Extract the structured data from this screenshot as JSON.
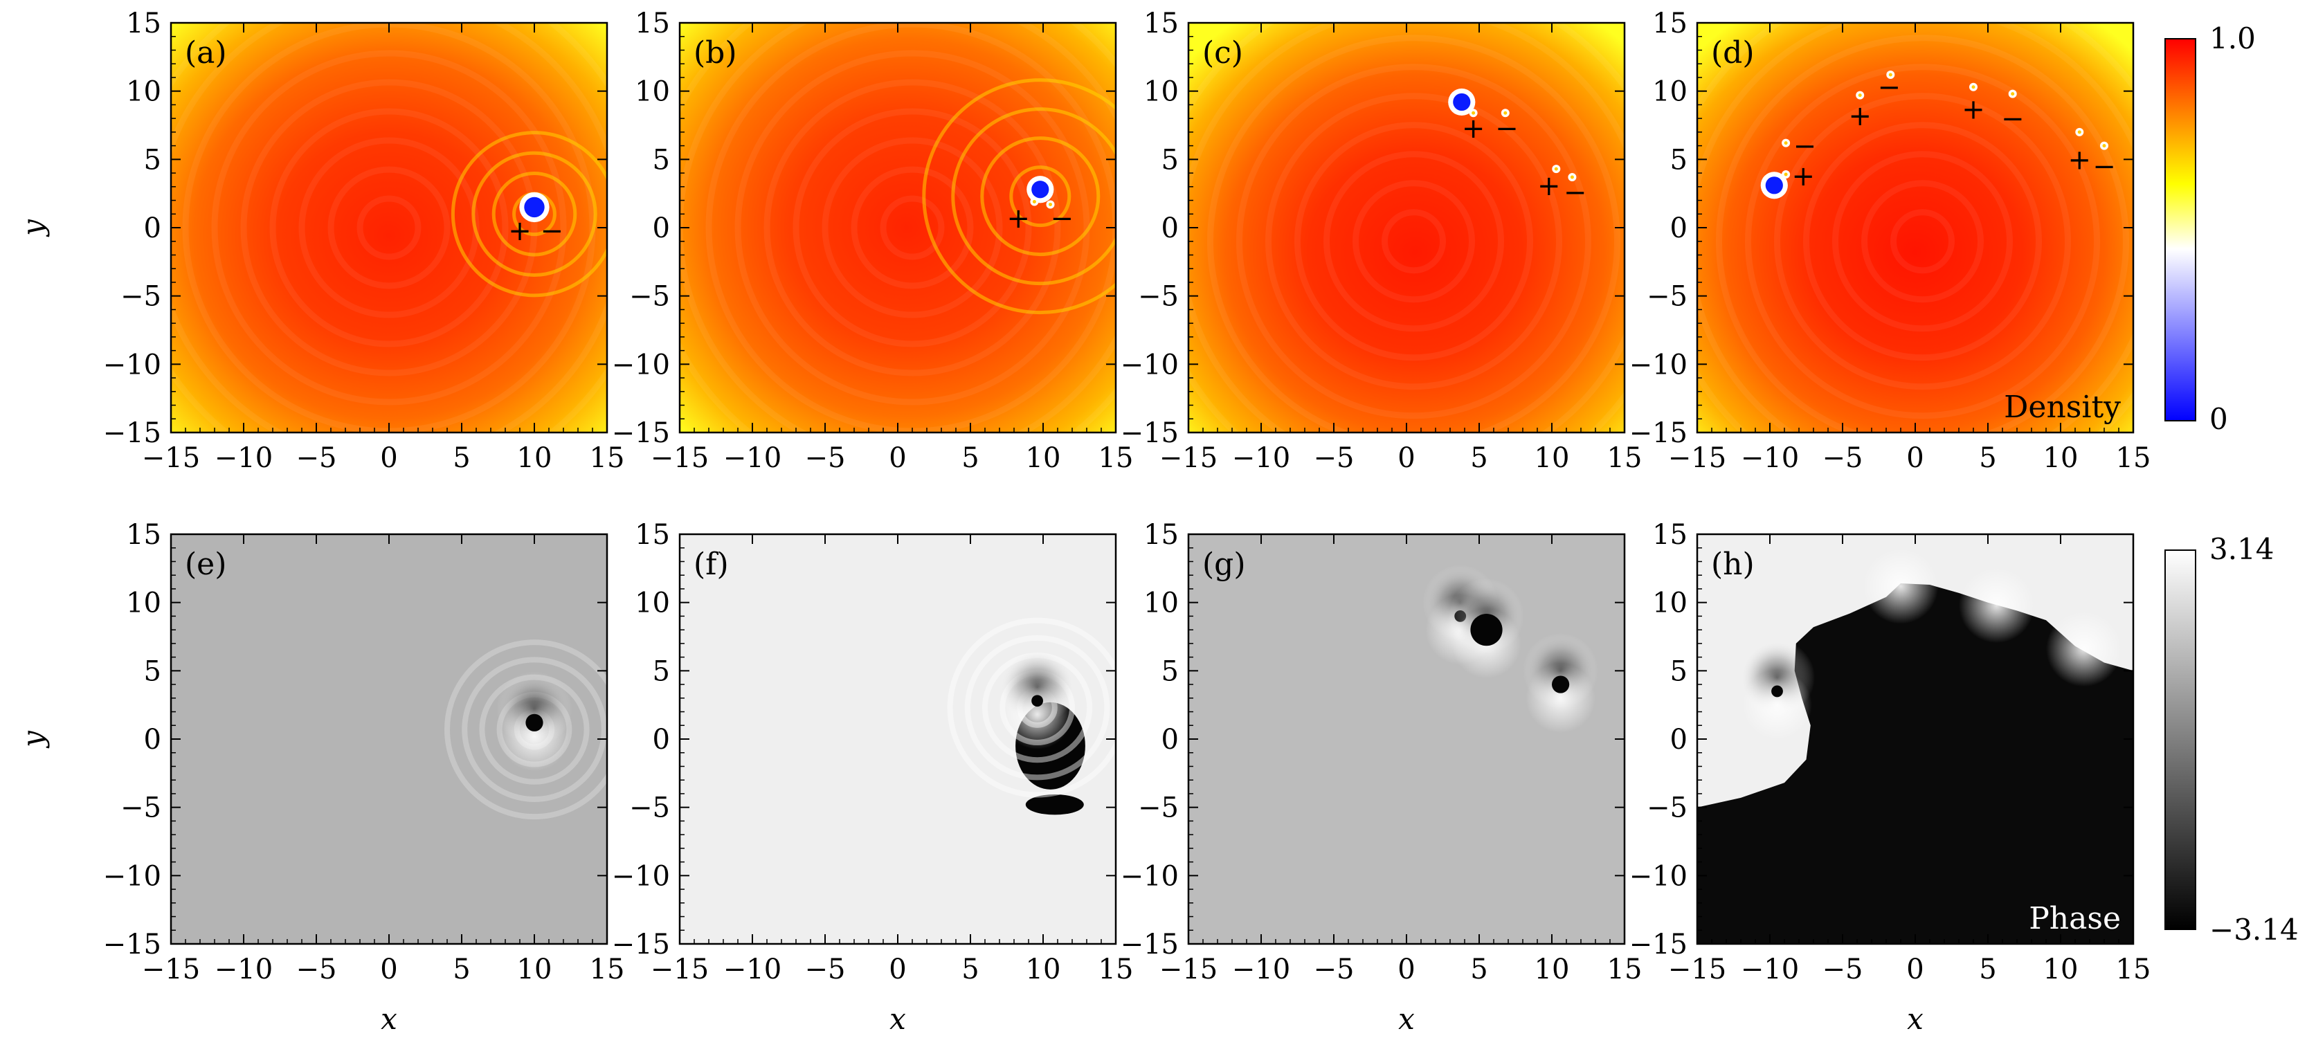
{
  "chart_data": {
    "type": "heatmap",
    "layout": "2x4 grid",
    "xlabel": "x",
    "ylabel": "y",
    "xlim": [
      -15,
      15
    ],
    "ylim": [
      -15,
      15
    ],
    "xticks": [
      -15,
      -10,
      -5,
      0,
      5,
      10,
      15
    ],
    "yticks": [
      -15,
      -10,
      -5,
      0,
      5,
      10,
      15
    ],
    "tick_labels": [
      "−15",
      "−10",
      "−5",
      "0",
      "5",
      "10",
      "15"
    ],
    "colorbars": [
      {
        "row": "top",
        "label": "Density",
        "min_label": "0",
        "max_label": "1.0",
        "min": 0,
        "max": 1.0,
        "colormap": [
          "#0000ff",
          "#ffffff",
          "#ffff00",
          "#ff0000"
        ]
      },
      {
        "row": "bottom",
        "label": "Phase",
        "min_label": "−3.14",
        "max_label": "3.14",
        "min": -3.14,
        "max": 3.14,
        "colormap": [
          "#000000",
          "#ffffff"
        ]
      }
    ],
    "panels": [
      {
        "label": "(a)",
        "quantity": "density",
        "inner_label": "",
        "vortices": [
          {
            "x": 10,
            "y": 1.5,
            "r": 0.7
          }
        ],
        "small_vortices": [],
        "marks": [
          {
            "x": 9,
            "y": -0.2,
            "sign": "+"
          },
          {
            "x": 11.2,
            "y": -0.2,
            "sign": "−"
          }
        ]
      },
      {
        "label": "(b)",
        "quantity": "density",
        "inner_label": "",
        "vortices": [
          {
            "x": 9.8,
            "y": 2.8,
            "r": 0.6
          }
        ],
        "small_vortices": [
          {
            "x": 9.4,
            "y": 1.9
          },
          {
            "x": 10.5,
            "y": 1.7
          }
        ],
        "marks": [
          {
            "x": 8.3,
            "y": 0.7,
            "sign": "+"
          },
          {
            "x": 11.3,
            "y": 0.7,
            "sign": "−"
          }
        ]
      },
      {
        "label": "(c)",
        "quantity": "density",
        "inner_label": "",
        "vortices": [
          {
            "x": 3.8,
            "y": 9.2,
            "r": 0.6
          }
        ],
        "small_vortices": [
          {
            "x": 4.6,
            "y": 8.4
          },
          {
            "x": 6.8,
            "y": 8.4
          },
          {
            "x": 10.3,
            "y": 4.3
          },
          {
            "x": 11.4,
            "y": 3.7
          }
        ],
        "marks": [
          {
            "x": 4.6,
            "y": 7.3,
            "sign": "+"
          },
          {
            "x": 6.9,
            "y": 7.3,
            "sign": "−"
          },
          {
            "x": 9.8,
            "y": 3.1,
            "sign": "+"
          },
          {
            "x": 11.6,
            "y": 2.6,
            "sign": "−"
          }
        ]
      },
      {
        "label": "(d)",
        "quantity": "density",
        "inner_label": "Density",
        "vortices": [
          {
            "x": -9.7,
            "y": 3.1,
            "r": 0.6
          }
        ],
        "small_vortices": [
          {
            "x": -8.9,
            "y": 3.9
          },
          {
            "x": -8.9,
            "y": 6.2
          },
          {
            "x": -3.8,
            "y": 9.7
          },
          {
            "x": -1.7,
            "y": 11.2
          },
          {
            "x": 4.0,
            "y": 10.3
          },
          {
            "x": 6.7,
            "y": 9.8
          },
          {
            "x": 11.3,
            "y": 7.0
          },
          {
            "x": 13.0,
            "y": 6.0
          }
        ],
        "marks": [
          {
            "x": -7.7,
            "y": 3.8,
            "sign": "+"
          },
          {
            "x": -7.6,
            "y": 6.0,
            "sign": "−"
          },
          {
            "x": -3.8,
            "y": 8.2,
            "sign": "+"
          },
          {
            "x": -1.8,
            "y": 10.3,
            "sign": "−"
          },
          {
            "x": 4.0,
            "y": 8.7,
            "sign": "+"
          },
          {
            "x": 6.7,
            "y": 8.0,
            "sign": "−"
          },
          {
            "x": 11.3,
            "y": 5.0,
            "sign": "+"
          },
          {
            "x": 13.0,
            "y": 4.5,
            "sign": "−"
          }
        ]
      },
      {
        "label": "(e)",
        "quantity": "phase",
        "inner_label": "",
        "background": "#b4b4b4",
        "singularities": [
          {
            "x": 10,
            "y": 1.2,
            "r": 0.6
          }
        ]
      },
      {
        "label": "(f)",
        "quantity": "phase",
        "inner_label": "",
        "background": "#efefef",
        "singularities": [
          {
            "x": 9.6,
            "y": 2.8,
            "r": 0.4
          }
        ],
        "dark_regions": [
          {
            "x": 10.5,
            "y": -0.5,
            "rx": 2.4,
            "ry": 3.0
          },
          {
            "x": 10.8,
            "y": -4.8,
            "rx": 2.0,
            "ry": 0.7
          }
        ]
      },
      {
        "label": "(g)",
        "quantity": "phase",
        "inner_label": "",
        "background": "#bcbcbc",
        "singularities": [
          {
            "x": 3.7,
            "y": 9.0,
            "r": 0.4
          },
          {
            "x": 5.5,
            "y": 8.0,
            "r": 1.1
          },
          {
            "x": 10.6,
            "y": 4.0,
            "r": 0.6
          }
        ]
      },
      {
        "label": "(h)",
        "quantity": "phase",
        "inner_label": "Phase",
        "background": "#f0f0f0",
        "singularities": [
          {
            "x": -9.5,
            "y": 3.5,
            "r": 0.4
          }
        ],
        "dark_boundary": [
          [
            -15,
            -5
          ],
          [
            -12,
            -4.3
          ],
          [
            -9,
            -3.2
          ],
          [
            -7.5,
            -1.5
          ],
          [
            -7.2,
            1
          ],
          [
            -7.8,
            3
          ],
          [
            -8.3,
            5
          ],
          [
            -8.2,
            7
          ],
          [
            -7,
            8.2
          ],
          [
            -4.5,
            9.2
          ],
          [
            -2,
            10.4
          ],
          [
            -1,
            11.4
          ],
          [
            1,
            11.3
          ],
          [
            3,
            10.7
          ],
          [
            5,
            10.0
          ],
          [
            7,
            9.4
          ],
          [
            9,
            8.7
          ],
          [
            11,
            6.8
          ],
          [
            13,
            5.6
          ],
          [
            15,
            5.0
          ],
          [
            15,
            -15
          ],
          [
            -15,
            -15
          ]
        ]
      }
    ]
  }
}
